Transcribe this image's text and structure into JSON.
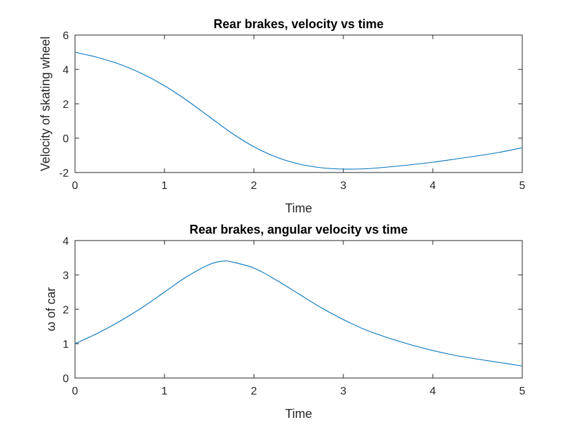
{
  "chart_data": [
    {
      "type": "line",
      "title": "Rear brakes, velocity vs time",
      "xlabel": "Time",
      "ylabel": "Velocity of skating wheel",
      "xlim": [
        0,
        5
      ],
      "ylim": [
        -2,
        6
      ],
      "xticks": [
        0,
        1,
        2,
        3,
        4,
        5
      ],
      "yticks": [
        -2,
        0,
        2,
        4,
        6
      ],
      "grid": false,
      "color": "#0072BD",
      "x": [
        0,
        0.25,
        0.5,
        0.75,
        1.0,
        1.25,
        1.5,
        1.75,
        2.0,
        2.25,
        2.5,
        2.75,
        3.0,
        3.25,
        3.5,
        3.75,
        4.0,
        4.25,
        4.5,
        4.75,
        5.0
      ],
      "y": [
        5.0,
        4.7,
        4.3,
        3.75,
        3.05,
        2.2,
        1.25,
        0.3,
        -0.5,
        -1.1,
        -1.5,
        -1.72,
        -1.8,
        -1.78,
        -1.68,
        -1.55,
        -1.4,
        -1.22,
        -1.03,
        -0.82,
        -0.55
      ]
    },
    {
      "type": "line",
      "title": "Rear brakes, angular velocity vs time",
      "xlabel": "Time",
      "ylabel": "ω of car",
      "xlim": [
        0,
        5
      ],
      "ylim": [
        0,
        4
      ],
      "xticks": [
        0,
        1,
        2,
        3,
        4,
        5
      ],
      "yticks": [
        0,
        1,
        2,
        3,
        4
      ],
      "grid": false,
      "color": "#0072BD",
      "x": [
        0,
        0.25,
        0.5,
        0.75,
        1.0,
        1.25,
        1.5,
        1.65,
        1.75,
        2.0,
        2.25,
        2.5,
        2.75,
        3.0,
        3.25,
        3.5,
        3.75,
        4.0,
        4.25,
        4.5,
        4.75,
        5.0
      ],
      "y": [
        1.0,
        1.3,
        1.65,
        2.05,
        2.5,
        2.95,
        3.3,
        3.4,
        3.38,
        3.2,
        2.85,
        2.45,
        2.05,
        1.7,
        1.4,
        1.17,
        0.97,
        0.8,
        0.66,
        0.55,
        0.45,
        0.35
      ]
    }
  ]
}
